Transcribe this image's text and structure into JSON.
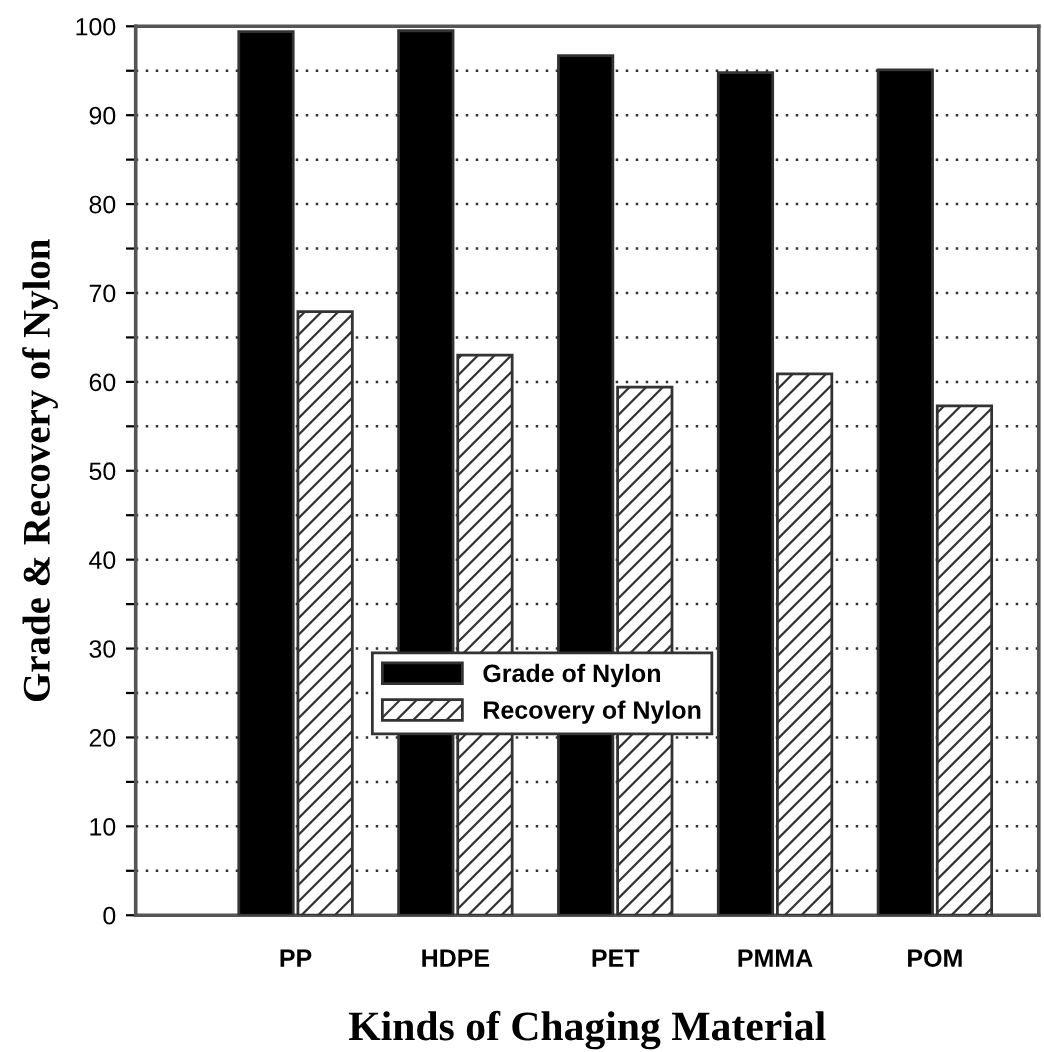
{
  "chart_data": {
    "type": "bar",
    "xlabel": "Kinds of Chaging Material",
    "ylabel": "Grade & Recovery of Nylon",
    "categories": [
      "PP",
      "HDPE",
      "PET",
      "PMMA",
      "POM"
    ],
    "series": [
      {
        "name": "Grade of Nylon",
        "color": "#000000",
        "values": [
          99.4,
          99.5,
          96.7,
          94.8,
          95.1
        ]
      },
      {
        "name": "Recovery of Nylon",
        "color": "#333333",
        "values": [
          67.9,
          63.0,
          59.4,
          60.9,
          57.3
        ]
      }
    ],
    "ylim": [
      0,
      100
    ],
    "yticks": [
      0,
      {
        "value": 5,
        "label": null
      },
      10,
      {
        "value": 15,
        "label": null
      },
      20,
      {
        "value": 25,
        "label": null
      },
      30,
      {
        "value": 35,
        "label": null
      },
      40,
      {
        "value": 45,
        "label": null
      },
      50,
      {
        "value": 55,
        "label": null
      },
      60,
      {
        "value": 65,
        "label": null
      },
      70,
      {
        "value": 75,
        "label": null
      },
      80,
      {
        "value": 85,
        "label": null
      },
      90,
      {
        "value": 95,
        "label": null
      },
      100
    ],
    "grid": "y",
    "legend": "bottom"
  }
}
